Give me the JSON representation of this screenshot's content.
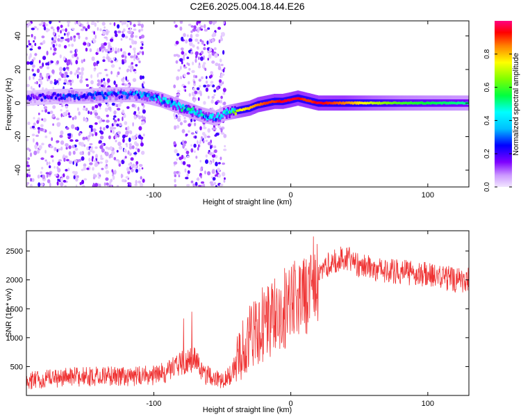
{
  "title": "C2E6.2025.004.18.44.E26",
  "chart_data": [
    {
      "type": "heatmap",
      "title": "C2E6.2025.004.18.44.E26",
      "xlabel": "Height of straight line (km)",
      "ylabel": "Frequency (Hz)",
      "xlim": [
        -193,
        130
      ],
      "ylim": [
        -50,
        49
      ],
      "xticks": [
        -100,
        0,
        100
      ],
      "yticks": [
        -40,
        -20,
        0,
        20,
        40
      ],
      "colorbar": {
        "label": "Normalized spectral amplitude",
        "range": [
          0.0,
          1.0
        ],
        "ticks": [
          0.0,
          0.2,
          0.4,
          0.6,
          0.8
        ],
        "colormap": [
          "#cc99ff",
          "#7f00ff",
          "#0000ff",
          "#00bfff",
          "#00ffff",
          "#00ff40",
          "#80ff00",
          "#ffff00",
          "#ff8000",
          "#ff0000",
          "#ff0080"
        ]
      },
      "ridge": {
        "x": [
          -190,
          -170,
          -150,
          -130,
          -115,
          -105,
          -95,
          -85,
          -75,
          -65,
          -55,
          -48,
          -42,
          -36,
          -30,
          -24,
          -18,
          -12,
          -6,
          0,
          5,
          10,
          15,
          20,
          40,
          60,
          80,
          100,
          130
        ],
        "frequency": [
          3,
          4,
          4,
          5,
          5,
          4,
          2,
          -1,
          -4,
          -7,
          -9,
          -6,
          -5,
          -4,
          -3,
          -1,
          0,
          1,
          1,
          2,
          3,
          2,
          1,
          0,
          0,
          0,
          0,
          0,
          0
        ],
        "amplitude": [
          0.2,
          0.28,
          0.3,
          0.32,
          0.33,
          0.4,
          0.45,
          0.45,
          0.5,
          0.45,
          0.4,
          0.45,
          0.6,
          0.75,
          0.8,
          0.85,
          0.9,
          0.9,
          0.95,
          0.95,
          0.95,
          0.9,
          0.9,
          0.95,
          0.85,
          0.7,
          0.6,
          0.55,
          0.5
        ]
      },
      "noise_band_x": [
        [
          -193,
          -107
        ],
        [
          -85,
          -48
        ]
      ],
      "grid": false
    },
    {
      "type": "line",
      "xlabel": "Height of straight line (km)",
      "ylabel": "SNR (10 * v/v)",
      "xlim": [
        -193,
        130
      ],
      "ylim": [
        0,
        2850
      ],
      "xticks": [
        -100,
        0,
        100
      ],
      "yticks": [
        500,
        1000,
        1500,
        2000,
        2500
      ],
      "color": "#ef3333",
      "series": [
        {
          "x": [
            -193,
            -180,
            -160,
            -140,
            -120,
            -100,
            -90,
            -80,
            -75,
            -70,
            -65,
            -60,
            -55,
            -50,
            -45,
            -40,
            -35,
            -30,
            -25,
            -20,
            -15,
            -10,
            -5,
            0,
            5,
            10,
            15,
            20,
            25,
            30,
            35,
            40,
            50,
            60,
            70,
            80,
            90,
            100,
            110,
            120,
            130
          ],
          "y": [
            250,
            280,
            320,
            330,
            330,
            350,
            400,
            550,
            650,
            600,
            400,
            330,
            300,
            280,
            330,
            550,
            800,
            1000,
            1100,
            1200,
            1300,
            1400,
            1500,
            1550,
            1650,
            1800,
            1950,
            2150,
            2250,
            2300,
            2350,
            2400,
            2250,
            2200,
            2150,
            2150,
            2100,
            2100,
            2050,
            2000,
            2000
          ]
        }
      ],
      "grid": false
    }
  ]
}
